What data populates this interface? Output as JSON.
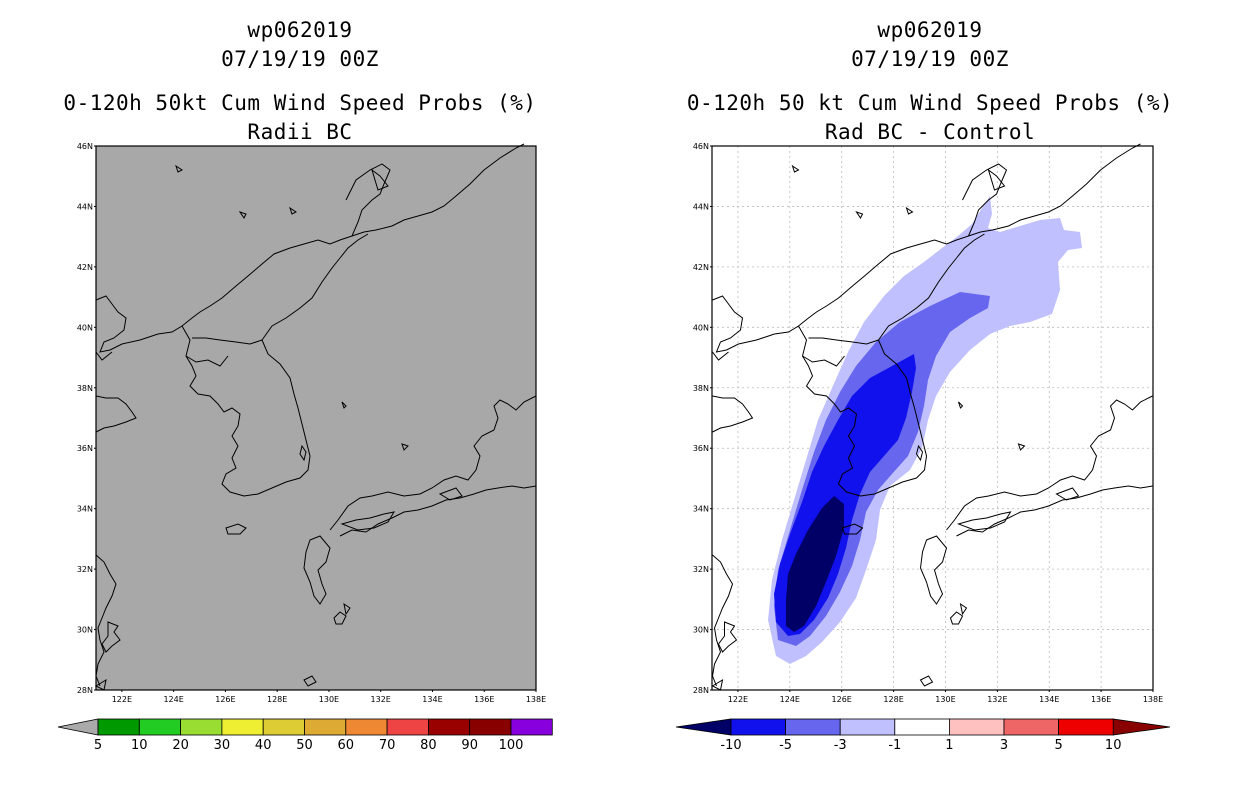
{
  "left_panel": {
    "title_lines": [
      "wp062019",
      "07/19/19 00Z",
      "0-120h 50kt Cum Wind Speed Probs (%)",
      "Radii BC"
    ],
    "lat_labels": [
      "46N",
      "44N",
      "42N",
      "40N",
      "38N",
      "36N",
      "34N",
      "32N",
      "30N",
      "28N"
    ],
    "lon_labels": [
      "122E",
      "124E",
      "126E",
      "128E",
      "130E",
      "132E",
      "134E",
      "136E",
      "138E"
    ],
    "colorbar": {
      "labels": [
        "5",
        "10",
        "20",
        "30",
        "40",
        "50",
        "60",
        "70",
        "80",
        "90",
        "100"
      ],
      "colors": [
        "#009900",
        "#22cc22",
        "#99dd33",
        "#eeee33",
        "#ddcc33",
        "#ddaa33",
        "#ee8833",
        "#ee4444",
        "#990000",
        "#880000",
        "#8800dd"
      ],
      "end_color": "#aaaaaa"
    },
    "background_color": "#a8a8a8"
  },
  "right_panel": {
    "title_lines": [
      "wp062019",
      "07/19/19 00Z",
      "0-120h 50 kt Cum Wind Speed Probs (%)",
      "Rad BC - Control"
    ],
    "lat_labels": [
      "46N",
      "44N",
      "42N",
      "40N",
      "38N",
      "36N",
      "34N",
      "32N",
      "30N",
      "28N"
    ],
    "lon_labels": [
      "122E",
      "124E",
      "126E",
      "128E",
      "130E",
      "132E",
      "134E",
      "136E",
      "138E"
    ],
    "colorbar": {
      "labels": [
        "-10",
        "-5",
        "-3",
        "-1",
        "1",
        "3",
        "5",
        "10"
      ],
      "colors": [
        "#000066",
        "#1111ee",
        "#6666ee",
        "#c0c0ff",
        "#ffffff",
        "#ffc0c0",
        "#ee6666",
        "#ee0000",
        "#880000"
      ],
      "low_end_color": "#000066",
      "high_end_color": "#880000"
    }
  }
}
